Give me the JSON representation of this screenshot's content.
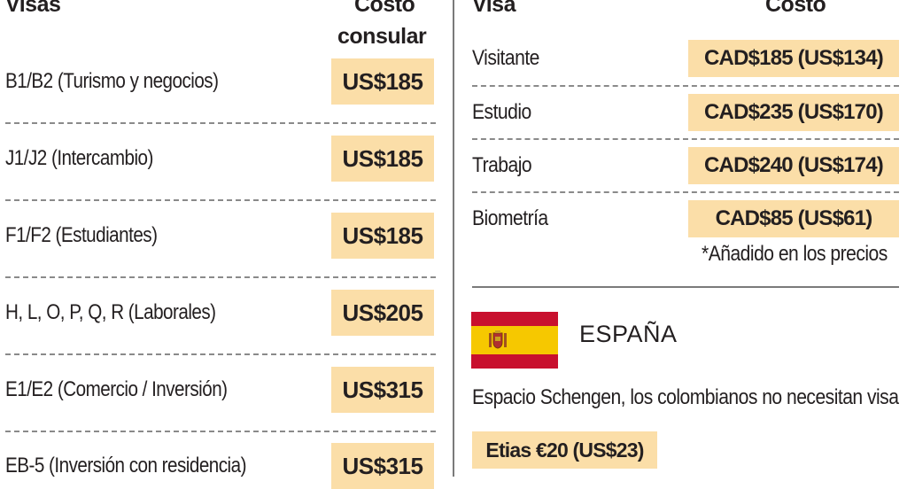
{
  "usa": {
    "header_visa": "Visas",
    "header_cost_1": "Costo",
    "header_cost_2": "consular",
    "rows": [
      {
        "label": "B1/B2 (Turismo y negocios)",
        "price": "US$185"
      },
      {
        "label": "J1/J2 (Intercambio)",
        "price": "US$185"
      },
      {
        "label": "F1/F2 (Estudiantes)",
        "price": "US$185"
      },
      {
        "label": "H, L, O, P, Q, R (Laborales)",
        "price": "US$205"
      },
      {
        "label": "E1/E2 (Comercio / Inversión)",
        "price": "US$315"
      },
      {
        "label": "EB-5 (Inversión con residencia)",
        "price": "US$315"
      }
    ]
  },
  "canada": {
    "header_visa": "Visa",
    "header_cost": "Costo",
    "rows": [
      {
        "label": "Visitante",
        "price": "CAD$185 (US$134)"
      },
      {
        "label": "Estudio",
        "price": "CAD$235 (US$170)"
      },
      {
        "label": "Trabajo",
        "price": "CAD$240 (US$174)"
      },
      {
        "label": "Biometría",
        "price": "CAD$85 (US$61)"
      }
    ],
    "note": "*Añadido en los precios"
  },
  "spain": {
    "country": "ESPAÑA",
    "flag_icon": "spain-flag-icon",
    "description": "Espacio Schengen, los colombianos no necesitan visa",
    "etias": "Etias €20 (US$23)"
  },
  "colors": {
    "price_highlight": "#fbdea8",
    "text": "#231f20",
    "flag_red": "#c8102e",
    "flag_yellow": "#f6c800"
  }
}
